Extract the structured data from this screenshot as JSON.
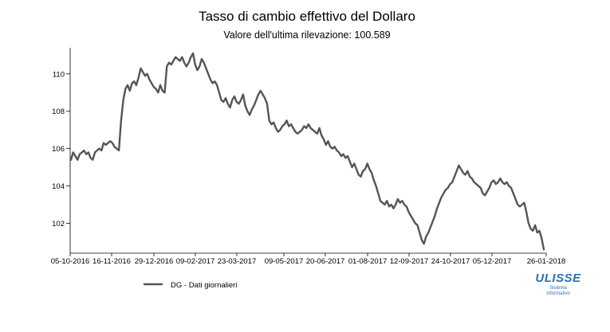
{
  "chart_data": {
    "type": "line",
    "title": "Tasso di cambio effettivo del Dollaro",
    "subtitle": "Valore dell'ultima rilevazione: 100.589",
    "xlabel": "",
    "ylabel": "",
    "ylim": [
      100.4,
      111.4
    ],
    "yticks": [
      102,
      104,
      106,
      108,
      110
    ],
    "x_tick_labels": [
      "05-10-2016",
      "16-11-2016",
      "29-12-2016",
      "09-02-2017",
      "23-03-2017",
      "09-05-2017",
      "20-06-2017",
      "01-08-2017",
      "12-09-2017",
      "24-10-2017",
      "05-12-2017",
      "26-01-2018"
    ],
    "grid": false,
    "legend_position": "bottom-left",
    "line_color": "#555555",
    "series": [
      {
        "name": "DG - Dati giornalieri",
        "values": [
          105.4,
          105.8,
          105.6,
          105.4,
          105.7,
          105.8,
          105.9,
          105.7,
          105.8,
          105.5,
          105.4,
          105.8,
          105.9,
          106.0,
          105.9,
          106.3,
          106.2,
          106.3,
          106.4,
          106.3,
          106.1,
          106.0,
          105.9,
          107.5,
          108.6,
          109.2,
          109.4,
          109.1,
          109.5,
          109.6,
          109.4,
          109.8,
          110.3,
          110.1,
          109.9,
          110.0,
          109.7,
          109.5,
          109.3,
          109.2,
          109.0,
          109.4,
          109.1,
          109.0,
          110.4,
          110.6,
          110.5,
          110.7,
          110.9,
          110.8,
          110.7,
          110.9,
          110.6,
          110.4,
          110.6,
          110.9,
          111.1,
          110.5,
          110.2,
          110.4,
          110.8,
          110.6,
          110.3,
          110.0,
          109.7,
          109.5,
          109.6,
          109.4,
          109.0,
          108.6,
          108.5,
          108.7,
          108.4,
          108.2,
          108.6,
          108.8,
          108.5,
          108.4,
          108.6,
          108.9,
          108.3,
          108.0,
          107.8,
          108.1,
          108.3,
          108.6,
          108.9,
          109.1,
          108.9,
          108.7,
          108.4,
          107.5,
          107.3,
          107.4,
          107.1,
          106.9,
          107.0,
          107.2,
          107.3,
          107.5,
          107.2,
          107.3,
          107.1,
          106.9,
          106.8,
          106.9,
          107.0,
          107.2,
          107.1,
          107.3,
          107.1,
          107.0,
          106.9,
          106.8,
          107.1,
          106.7,
          106.5,
          106.2,
          106.4,
          106.1,
          106.0,
          106.1,
          105.9,
          105.8,
          105.6,
          105.7,
          105.5,
          105.6,
          105.3,
          105.0,
          105.2,
          104.9,
          104.6,
          104.5,
          104.8,
          104.9,
          105.2,
          104.9,
          104.7,
          104.3,
          104.0,
          103.6,
          103.2,
          103.1,
          103.0,
          103.2,
          102.9,
          103.0,
          102.8,
          103.0,
          103.3,
          103.1,
          103.2,
          103.0,
          102.9,
          102.6,
          102.4,
          102.2,
          102.0,
          101.9,
          101.5,
          101.1,
          100.9,
          101.3,
          101.5,
          101.8,
          102.1,
          102.4,
          102.8,
          103.1,
          103.4,
          103.6,
          103.8,
          103.9,
          104.1,
          104.2,
          104.5,
          104.8,
          105.1,
          104.9,
          104.7,
          104.6,
          104.8,
          104.5,
          104.4,
          104.2,
          104.1,
          104.0,
          103.9,
          103.6,
          103.5,
          103.7,
          103.9,
          104.2,
          104.3,
          104.1,
          104.2,
          104.4,
          104.2,
          104.1,
          104.2,
          104.0,
          103.9,
          103.6,
          103.3,
          103.0,
          102.9,
          103.0,
          103.1,
          102.6,
          102.0,
          101.7,
          101.6,
          101.9,
          101.5,
          101.6,
          101.2,
          100.6
        ]
      }
    ]
  },
  "logo": {
    "name": "ULISSE",
    "subtitle_line1": "Sistema",
    "subtitle_line2": "Informativo"
  }
}
